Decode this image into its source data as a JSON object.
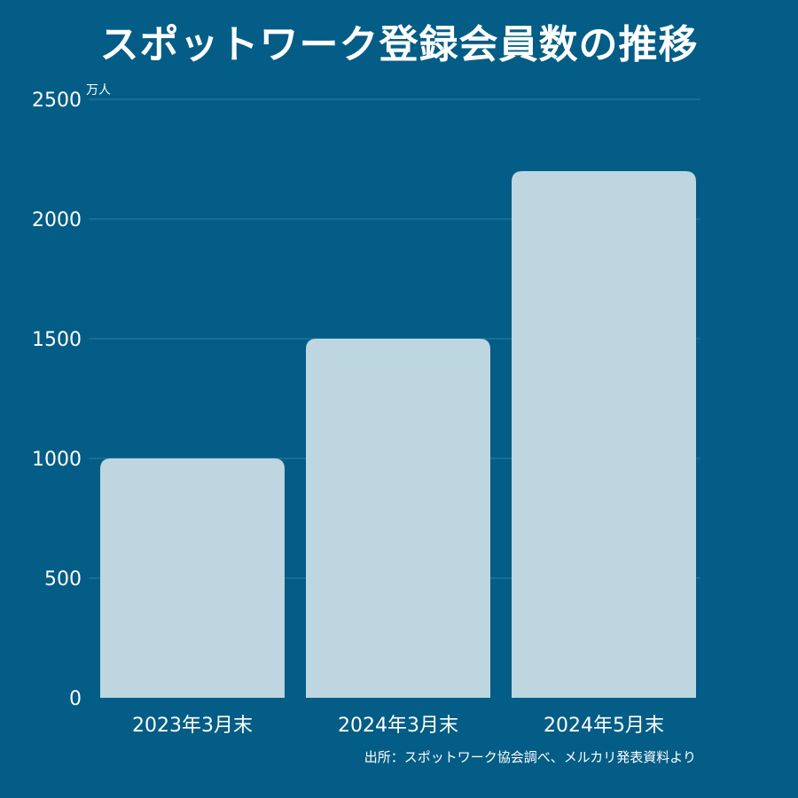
{
  "title": "スポットワーク登録会員数の推移",
  "source": "出所：スポットワーク協会調べ、メルカリ発表資料より",
  "colors": {
    "background": "#035D86",
    "bar": "#BDD6E0",
    "grid": "#2E7FA3",
    "text": "#FFFFFF"
  },
  "chart_data": {
    "type": "bar",
    "title": "スポットワーク登録会員数の推移",
    "categories": [
      "2023年3月末",
      "2024年3月末",
      "2024年5月末"
    ],
    "values": [
      1000,
      1500,
      2200
    ],
    "ylabel": "万人",
    "ylim": [
      0,
      2500
    ],
    "yticks": [
      0,
      500,
      1000,
      1500,
      2000,
      2500
    ],
    "grid": true
  }
}
